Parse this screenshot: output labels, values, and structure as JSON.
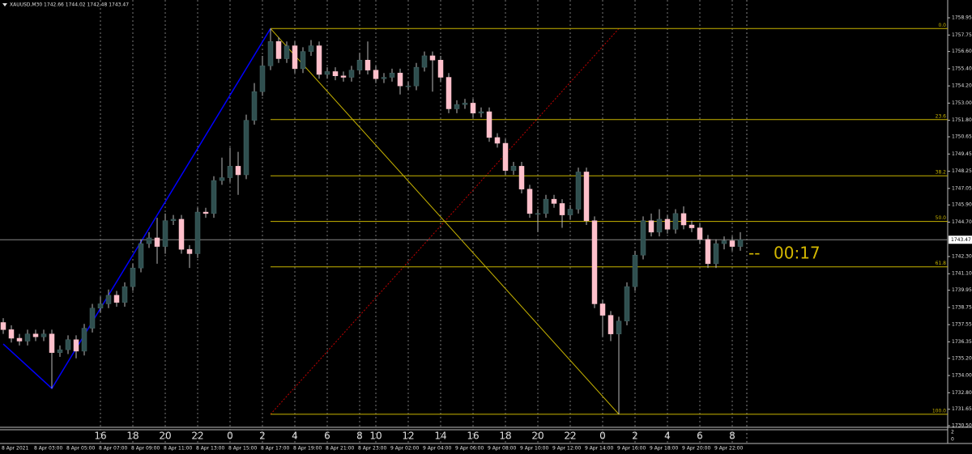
{
  "chart_data": {
    "type": "candlestick",
    "title": "XAUUSD,M30 1742.66 1744.02 1742.48 1743.47",
    "up_color": "#2f4f4f",
    "down_color": "#ffc0cb",
    "wick_color": "#b8b8b8",
    "categories": [
      "8 Apr 2021",
      null,
      null,
      null,
      "8 Apr 03:00",
      null,
      null,
      null,
      "8 Apr 05:00",
      null,
      null,
      null,
      "8 Apr 07:00",
      null,
      null,
      null,
      "8 Apr 09:00",
      null,
      null,
      null,
      "8 Apr 11:00",
      null,
      null,
      null,
      "8 Apr 13:00",
      null,
      null,
      null,
      "8 Apr 15:00",
      null,
      null,
      null,
      "8 Apr 17:00",
      null,
      null,
      null,
      "8 Apr 19:00",
      null,
      null,
      null,
      "8 Apr 21:00",
      null,
      null,
      null,
      "8 Apr 23:00",
      null,
      null,
      null,
      "9 Apr 02:00",
      null,
      null,
      null,
      "9 Apr 04:00",
      null,
      null,
      null,
      "9 Apr 06:00",
      null,
      null,
      null,
      "9 Apr 08:00",
      null,
      null,
      null,
      "9 Apr 10:00",
      null,
      null,
      null,
      "9 Apr 12:00",
      null,
      null,
      null,
      "9 Apr 14:00",
      null,
      null,
      null,
      "9 Apr 16:00",
      null,
      null,
      null,
      "9 Apr 18:00",
      null,
      null,
      null,
      "9 Apr 20:00",
      null,
      null,
      null,
      "9 Apr 22:00",
      null,
      null,
      null
    ],
    "open": [
      1737.7,
      1737.2,
      1736.6,
      1736.4,
      1736.9,
      1736.7,
      1736.9,
      1735.6,
      1735.8,
      1736.5,
      1735.7,
      1737.3,
      1738.7,
      1739.0,
      1739.6,
      1739.1,
      1740.2,
      1741.5,
      1743.2,
      1743.6,
      1743.0,
      1744.8,
      1744.9,
      1742.8,
      1742.5,
      1745.4,
      1745.3,
      1747.6,
      1747.8,
      1748.6,
      1748.0,
      1751.8,
      1753.8,
      1755.6,
      1757.3,
      1756.1,
      1757.0,
      1755.4,
      1756.6,
      1757.0,
      1755.0,
      1755.2,
      1754.9,
      1754.8,
      1755.3,
      1756.0,
      1755.3,
      1754.7,
      1754.8,
      1755.1,
      1754.2,
      1754.2,
      1755.5,
      1756.3,
      1756.0,
      1754.8,
      1752.6,
      1752.9,
      1753.0,
      1752.3,
      1752.4,
      1750.6,
      1750.2,
      1748.3,
      1748.6,
      1747.0,
      1745.3,
      1745.3,
      1746.3,
      1746.0,
      1745.2,
      1745.6,
      1748.2,
      1744.8,
      1739.0,
      1738.2,
      1736.9,
      1737.8,
      1740.2,
      1742.4,
      1744.8,
      1744.0,
      1744.9,
      1744.2,
      1745.3,
      1744.5,
      1744.3,
      1743.5,
      1741.8,
      1743.2,
      1743.4,
      1743.0
    ],
    "high": [
      1738.0,
      1737.5,
      1736.9,
      1737.2,
      1737.2,
      1737.2,
      1737.2,
      1736.1,
      1736.8,
      1736.8,
      1737.6,
      1739.0,
      1739.5,
      1740.0,
      1739.9,
      1740.5,
      1741.8,
      1743.5,
      1744.0,
      1745.0,
      1745.3,
      1745.2,
      1745.2,
      1743.1,
      1745.7,
      1745.7,
      1747.9,
      1749.2,
      1749.9,
      1749.6,
      1752.2,
      1754.4,
      1756.3,
      1758.2,
      1757.6,
      1757.3,
      1757.3,
      1756.9,
      1757.4,
      1757.3,
      1755.5,
      1755.5,
      1755.2,
      1755.6,
      1756.5,
      1757.3,
      1755.6,
      1755.1,
      1755.4,
      1755.4,
      1754.5,
      1755.8,
      1756.6,
      1756.6,
      1756.3,
      1755.1,
      1753.2,
      1753.3,
      1753.3,
      1752.7,
      1752.7,
      1750.9,
      1750.5,
      1748.9,
      1748.9,
      1747.3,
      1745.6,
      1746.6,
      1746.6,
      1746.3,
      1745.9,
      1748.5,
      1748.5,
      1745.1,
      1739.3,
      1738.5,
      1738.1,
      1740.5,
      1742.7,
      1745.1,
      1745.3,
      1745.6,
      1745.2,
      1745.6,
      1745.8,
      1744.8,
      1744.6,
      1743.8,
      1743.5,
      1743.7,
      1743.7,
      1744.0
    ],
    "low": [
      1736.9,
      1736.3,
      1736.1,
      1736.1,
      1736.4,
      1736.4,
      1733.1,
      1735.3,
      1735.5,
      1735.2,
      1735.4,
      1737.0,
      1738.4,
      1738.7,
      1738.8,
      1738.8,
      1739.9,
      1741.2,
      1742.9,
      1741.8,
      1742.5,
      1744.5,
      1742.5,
      1741.5,
      1742.2,
      1745.0,
      1745.0,
      1747.3,
      1747.5,
      1746.6,
      1747.7,
      1751.5,
      1753.5,
      1755.3,
      1755.8,
      1755.8,
      1755.1,
      1755.1,
      1756.3,
      1754.7,
      1754.7,
      1754.6,
      1754.5,
      1754.5,
      1755.0,
      1755.0,
      1754.4,
      1754.4,
      1754.5,
      1753.6,
      1753.9,
      1753.9,
      1755.2,
      1753.8,
      1754.5,
      1752.3,
      1752.3,
      1752.6,
      1752.0,
      1752.0,
      1750.3,
      1749.9,
      1748.0,
      1748.0,
      1746.7,
      1745.0,
      1744.0,
      1745.0,
      1745.7,
      1744.3,
      1744.9,
      1745.3,
      1744.5,
      1738.7,
      1736.7,
      1736.4,
      1731.3,
      1737.5,
      1739.9,
      1742.1,
      1743.7,
      1743.7,
      1743.9,
      1743.9,
      1744.2,
      1744.0,
      1743.2,
      1741.5,
      1741.5,
      1742.8,
      1742.7,
      1742.7
    ],
    "close": [
      1737.2,
      1736.6,
      1736.4,
      1736.9,
      1736.7,
      1736.9,
      1735.6,
      1735.8,
      1736.5,
      1735.7,
      1737.3,
      1738.7,
      1739.0,
      1739.6,
      1739.1,
      1740.2,
      1741.5,
      1743.2,
      1743.6,
      1743.0,
      1744.8,
      1744.9,
      1742.8,
      1742.5,
      1745.4,
      1745.3,
      1747.6,
      1747.8,
      1748.6,
      1748.0,
      1751.8,
      1753.8,
      1755.6,
      1757.3,
      1756.1,
      1757.0,
      1755.4,
      1756.6,
      1757.0,
      1755.0,
      1755.2,
      1754.9,
      1754.8,
      1755.3,
      1756.0,
      1755.3,
      1754.7,
      1754.8,
      1755.1,
      1754.2,
      1754.2,
      1755.5,
      1756.3,
      1756.0,
      1754.8,
      1752.6,
      1752.9,
      1753.0,
      1752.3,
      1752.4,
      1750.6,
      1750.2,
      1748.3,
      1748.6,
      1747.0,
      1745.3,
      1745.3,
      1746.3,
      1746.0,
      1745.2,
      1745.6,
      1748.2,
      1744.8,
      1739.0,
      1738.2,
      1736.9,
      1737.8,
      1740.2,
      1742.4,
      1744.8,
      1744.0,
      1744.9,
      1744.2,
      1745.3,
      1744.5,
      1744.3,
      1743.5,
      1741.8,
      1743.2,
      1743.4,
      1743.0,
      1743.47
    ],
    "ylim": [
      1730.39,
      1759.74
    ],
    "yticks": [
      1758.95,
      1757.75,
      {
        "value": 1756.6,
        "label": "1756.60"
      },
      {
        "value": 1755.4,
        "label": "1755.40"
      },
      {
        "value": 1754.2,
        "label": "1754.20"
      },
      {
        "value": 1753,
        "label": "1753.00"
      },
      {
        "value": 1751.8,
        "label": "1751.80"
      },
      1750.65,
      1749.45,
      1748.25,
      1747.05,
      {
        "value": 1745.9,
        "label": "1745.90"
      },
      {
        "value": 1744.7,
        "label": "1744.70"
      },
      {
        "value": 1742.3,
        "label": "1742.30"
      },
      {
        "value": 1741.1,
        "label": "1741.10"
      },
      1739.95,
      1738.75,
      1737.55,
      1736.35,
      {
        "value": 1735.2,
        "label": "1735.20"
      },
      {
        "value": 1734,
        "label": "1734.00"
      },
      {
        "value": 1732.8,
        "label": "1732.80"
      },
      1731.65,
      {
        "value": 1730.5,
        "label": "1730.50"
      }
    ],
    "hour_labels": [
      {
        "index": 12,
        "label": "16"
      },
      {
        "index": 16,
        "label": "18"
      },
      {
        "index": 20,
        "label": "20"
      },
      {
        "index": 24,
        "label": "22"
      },
      {
        "index": 28,
        "label": "0"
      },
      {
        "index": 32,
        "label": "2"
      },
      {
        "index": 36,
        "label": "4"
      },
      {
        "index": 40,
        "label": "6"
      },
      {
        "index": 44,
        "label": "8"
      },
      {
        "index": 46,
        "label": "10"
      },
      {
        "index": 50,
        "label": "12"
      },
      {
        "index": 54,
        "label": "14"
      },
      {
        "index": 58,
        "label": "16"
      },
      {
        "index": 62,
        "label": "18"
      },
      {
        "index": 66,
        "label": "20"
      },
      {
        "index": 70,
        "label": "22"
      },
      {
        "index": 74,
        "label": "0"
      },
      {
        "index": 78,
        "label": "2"
      },
      {
        "index": 82,
        "label": "4"
      },
      {
        "index": 86,
        "label": "6"
      },
      {
        "index": 90,
        "label": "8"
      }
    ],
    "current_price": 1743.47,
    "timer_prefix": "--",
    "timer": "00:17",
    "subwindow_scale": [
      "2",
      "0"
    ],
    "zigzag": {
      "color": "#0000ff",
      "points": [
        {
          "index": 0,
          "price": 1736.2
        },
        {
          "index": 6,
          "price": 1733.1
        },
        {
          "index": 33,
          "price": 1758.2
        }
      ]
    },
    "fibonacci": {
      "color": "#c8b400",
      "diagonal_color": "#c00000",
      "start": {
        "index": 33,
        "price": 1758.2
      },
      "end": {
        "index": 76,
        "price": 1731.3
      },
      "levels": [
        {
          "label": "0.0",
          "price": 1758.2
        },
        {
          "label": "23.6",
          "price": 1751.85
        },
        {
          "label": "38.2",
          "price": 1747.93
        },
        {
          "label": "50.0",
          "price": 1744.75
        },
        {
          "label": "61.8",
          "price": 1741.58
        },
        {
          "label": "100.0",
          "price": 1731.3
        }
      ]
    }
  }
}
